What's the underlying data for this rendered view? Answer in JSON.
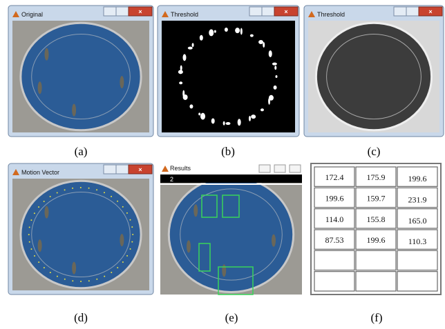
{
  "panels": [
    {
      "label": "(a)",
      "window_title": "Original"
    },
    {
      "label": "(b)",
      "window_title": "Threshold"
    },
    {
      "label": "(c)",
      "window_title": "Threshold"
    },
    {
      "label": "(d)",
      "window_title": "Motion Vector"
    },
    {
      "label": "(e)",
      "window_title": "Results",
      "counter": "2"
    },
    {
      "label": "(f)",
      "table": {
        "rows": [
          [
            "172.4",
            "175.9",
            "199.6"
          ],
          [
            "199.6",
            "159.7",
            "231.9"
          ],
          [
            "114.0",
            "155.8",
            "165.0"
          ],
          [
            "87.53",
            "199.6",
            "110.3"
          ]
        ]
      }
    }
  ]
}
